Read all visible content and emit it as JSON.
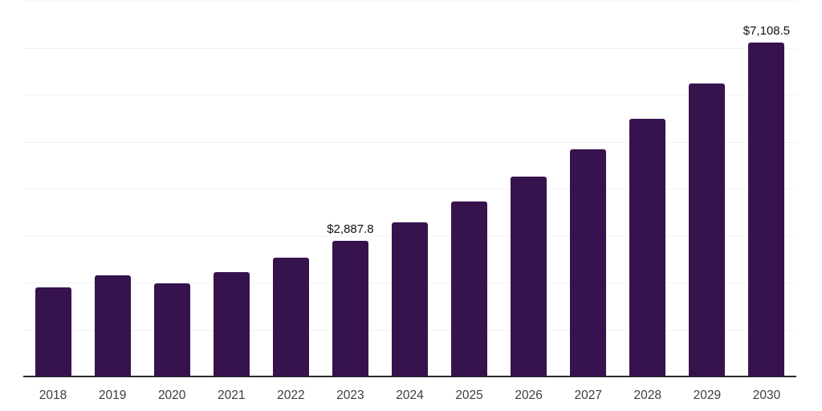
{
  "chart_data": {
    "type": "bar",
    "title": "",
    "xlabel": "",
    "ylabel": "",
    "categories": [
      "2018",
      "2019",
      "2020",
      "2021",
      "2022",
      "2023",
      "2024",
      "2025",
      "2026",
      "2027",
      "2028",
      "2029",
      "2030"
    ],
    "values": [
      1890,
      2160,
      1990,
      2230,
      2530,
      2887.8,
      3285,
      3735,
      4250,
      4830,
      5490,
      6245,
      7108.5
    ],
    "annotations": [
      {
        "index": 5,
        "text": "$2,887.8"
      },
      {
        "index": 12,
        "text": "$7,108.5"
      }
    ],
    "ylim": [
      0,
      8000
    ],
    "gridline_step": 1000,
    "grid": "horizontal-only",
    "legend": "none",
    "y_tick_labels_visible": false,
    "colors": {
      "bar": "#37134e",
      "gridline": "#f2f2f2",
      "axis_line": "#2b2b2b",
      "value_label": "#111111",
      "tick_label": "#3d3d3d",
      "background": "#ffffff"
    }
  }
}
